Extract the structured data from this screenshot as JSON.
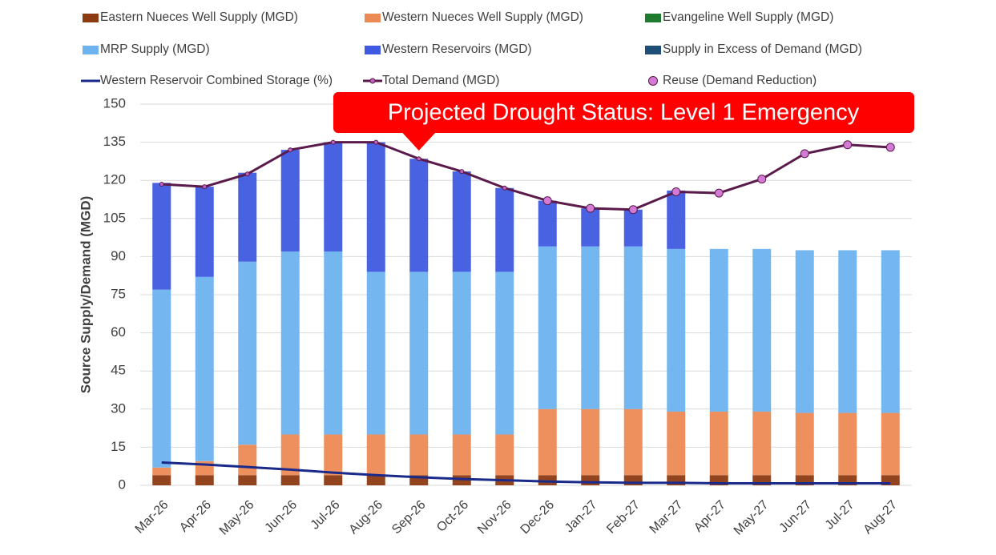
{
  "chart_data": {
    "type": "bar",
    "stacked": true,
    "grid": true,
    "legend": "top",
    "y_label": "Source Supply/Demand (MGD)",
    "annotation": "Projected Drought Status: Level 1 Emergency",
    "annotation_category": 6,
    "categories": [
      "Mar-26",
      "Apr-26",
      "May-26",
      "Jun-26",
      "Jul-26",
      "Aug-26",
      "Sep-26",
      "Oct-26",
      "Nov-26",
      "Dec-26",
      "Jan-27",
      "Feb-27",
      "Mar-27",
      "Apr-27",
      "May-27",
      "Jun-27",
      "Jul-27",
      "Aug-27"
    ],
    "ylim": [
      0,
      150
    ],
    "yticks": [
      0,
      15,
      30,
      45,
      60,
      75,
      90,
      105,
      120,
      135,
      150
    ],
    "series": [
      {
        "name": "Eastern Nueces Well Supply (MGD)",
        "type": "bar",
        "color": "#8b3a12",
        "values": [
          4,
          4,
          4,
          4,
          4,
          4,
          4,
          4,
          4,
          4,
          4,
          4,
          4,
          4,
          4,
          4,
          4,
          4
        ]
      },
      {
        "name": "Western Nueces Well Supply (MGD)",
        "type": "bar",
        "color": "#ec8a55",
        "values": [
          3,
          5.5,
          12,
          16,
          16,
          16,
          16,
          16,
          16,
          26,
          26,
          26,
          25,
          25,
          25,
          24.5,
          24.5,
          24.5
        ]
      },
      {
        "name": "Evangeline Well Supply (MGD)",
        "type": "bar",
        "color": "#1e7b2e",
        "values": [
          0,
          0,
          0,
          0,
          0,
          0,
          0,
          0,
          0,
          0,
          0,
          0,
          0,
          0,
          0,
          0,
          0,
          0
        ]
      },
      {
        "name": "MRP Supply (MGD)",
        "type": "bar",
        "color": "#6db3ef",
        "values": [
          70,
          72.5,
          72,
          72,
          72,
          64,
          64,
          64,
          64,
          64,
          64,
          64,
          64,
          64,
          64,
          64,
          64,
          64
        ]
      },
      {
        "name": "Western Reservoirs (MGD)",
        "type": "bar",
        "color": "#3f5ae0",
        "values": [
          42,
          35.5,
          35,
          40,
          43,
          51,
          44.5,
          39.5,
          33,
          18,
          15,
          14.5,
          23,
          0,
          0,
          0,
          0,
          0
        ]
      },
      {
        "name": "Supply in Excess of Demand (MGD)",
        "type": "bar",
        "color": "#1f4e79",
        "values": [
          0,
          0,
          0,
          0,
          0,
          0,
          0,
          0,
          0,
          0,
          0,
          0,
          0,
          0,
          0,
          0,
          0,
          0
        ]
      },
      {
        "name": "Western Reservoir Combined Storage (%)",
        "type": "line",
        "color": "#1a2a8a",
        "values": [
          9,
          8.2,
          7.2,
          6.2,
          5,
          4,
          3.2,
          2.5,
          2,
          1.5,
          1.2,
          1,
          1,
          0.8,
          0.8,
          0.8,
          0.8,
          0.8
        ]
      },
      {
        "name": "Total Demand (MGD)",
        "type": "line",
        "markers": true,
        "color": "#5a1a4a",
        "values": [
          118.5,
          117.5,
          122.5,
          132,
          135,
          135,
          128.5,
          123.5,
          117,
          112,
          109,
          108.5,
          115.5,
          115,
          120.5,
          130.5,
          134,
          133
        ]
      },
      {
        "name": "Reuse (Demand Reduction)",
        "type": "scatter",
        "color": "#d27ad6",
        "values": [
          null,
          null,
          null,
          null,
          null,
          null,
          null,
          null,
          null,
          112,
          109,
          108.5,
          115.5,
          115,
          120.5,
          130.5,
          134,
          133
        ]
      }
    ]
  }
}
